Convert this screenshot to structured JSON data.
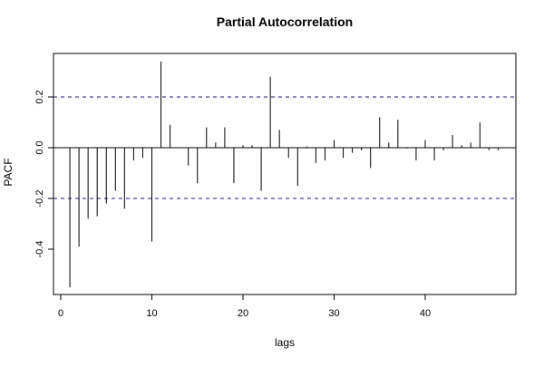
{
  "chart_data": {
    "type": "bar",
    "title": "Partial Autocorrelation",
    "xlabel": "lags",
    "ylabel": "PACF",
    "xlim": [
      0,
      49
    ],
    "ylim": [
      -0.6,
      0.38
    ],
    "x_ticks": [
      0,
      10,
      20,
      30,
      40
    ],
    "y_ticks": [
      -0.4,
      -0.2,
      0.0,
      0.2
    ],
    "y_tick_labels": [
      "-0.4",
      "-0.2",
      "0.0",
      "0.2"
    ],
    "confidence_bounds": [
      0.2,
      -0.2
    ],
    "grid": false,
    "legend": "none",
    "series": [
      {
        "x": [
          1,
          2,
          3,
          4,
          5,
          6,
          7,
          8,
          9,
          10,
          11,
          12,
          13,
          14,
          15,
          16,
          17,
          18,
          19,
          20,
          21,
          22,
          23,
          24,
          25,
          26,
          27,
          28,
          29,
          30,
          31,
          32,
          33,
          34,
          35,
          36,
          37,
          38,
          39,
          40,
          41,
          42,
          43,
          44,
          45,
          46,
          47,
          48
        ],
        "values": [
          -0.55,
          -0.39,
          -0.28,
          -0.27,
          -0.22,
          -0.17,
          -0.24,
          -0.05,
          -0.04,
          -0.37,
          0.34,
          0.09,
          -0.001,
          -0.07,
          -0.14,
          0.08,
          0.02,
          0.08,
          -0.14,
          0.01,
          0.01,
          -0.17,
          0.28,
          0.07,
          -0.04,
          -0.15,
          0.005,
          -0.06,
          -0.05,
          0.03,
          -0.04,
          -0.02,
          -0.01,
          -0.08,
          0.12,
          0.02,
          0.11,
          -0.003,
          -0.05,
          0.03,
          -0.05,
          -0.01,
          0.05,
          0.01,
          0.02,
          0.1,
          -0.01,
          -0.01
        ]
      }
    ]
  }
}
